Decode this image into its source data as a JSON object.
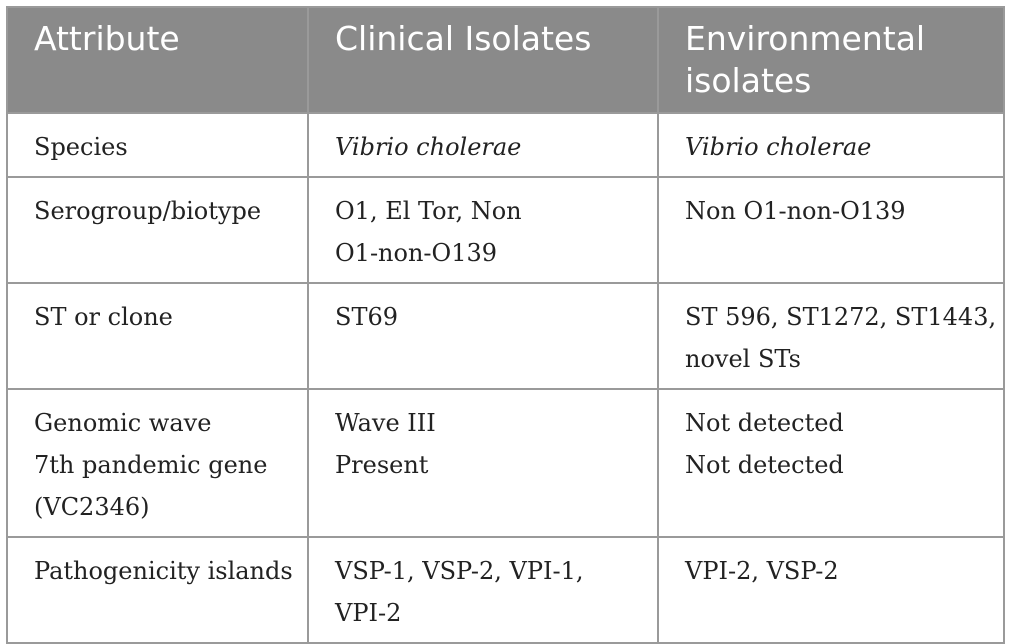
{
  "table": {
    "headers": [
      "Attribute",
      "Clinical Isolates",
      "Environmental isolates"
    ],
    "rows": [
      {
        "attribute": [
          "Species"
        ],
        "clinical": [
          "Vibrio cholerae"
        ],
        "environmental": [
          "Vibrio cholerae"
        ],
        "italic": true
      },
      {
        "attribute": [
          "Serogroup/biotype"
        ],
        "clinical": [
          "O1, El Tor, Non",
          "O1-non-O139"
        ],
        "environmental": [
          "Non O1-non-O139"
        ]
      },
      {
        "attribute": [
          "ST or clone"
        ],
        "clinical": [
          "ST69"
        ],
        "environmental": [
          "ST 596, ST1272, ST1443,",
          "novel STs"
        ]
      },
      {
        "attribute": [
          "Genomic wave",
          "7th pandemic gene",
          "(VC2346)"
        ],
        "clinical": [
          "Wave III",
          "Present"
        ],
        "environmental": [
          "Not detected",
          "Not detected"
        ]
      },
      {
        "attribute": [
          "Pathogenicity islands"
        ],
        "clinical": [
          "VSP-1, VSP-2, VPI-1,",
          "VPI-2"
        ],
        "environmental": [
          "VPI-2, VSP-2"
        ]
      }
    ]
  }
}
